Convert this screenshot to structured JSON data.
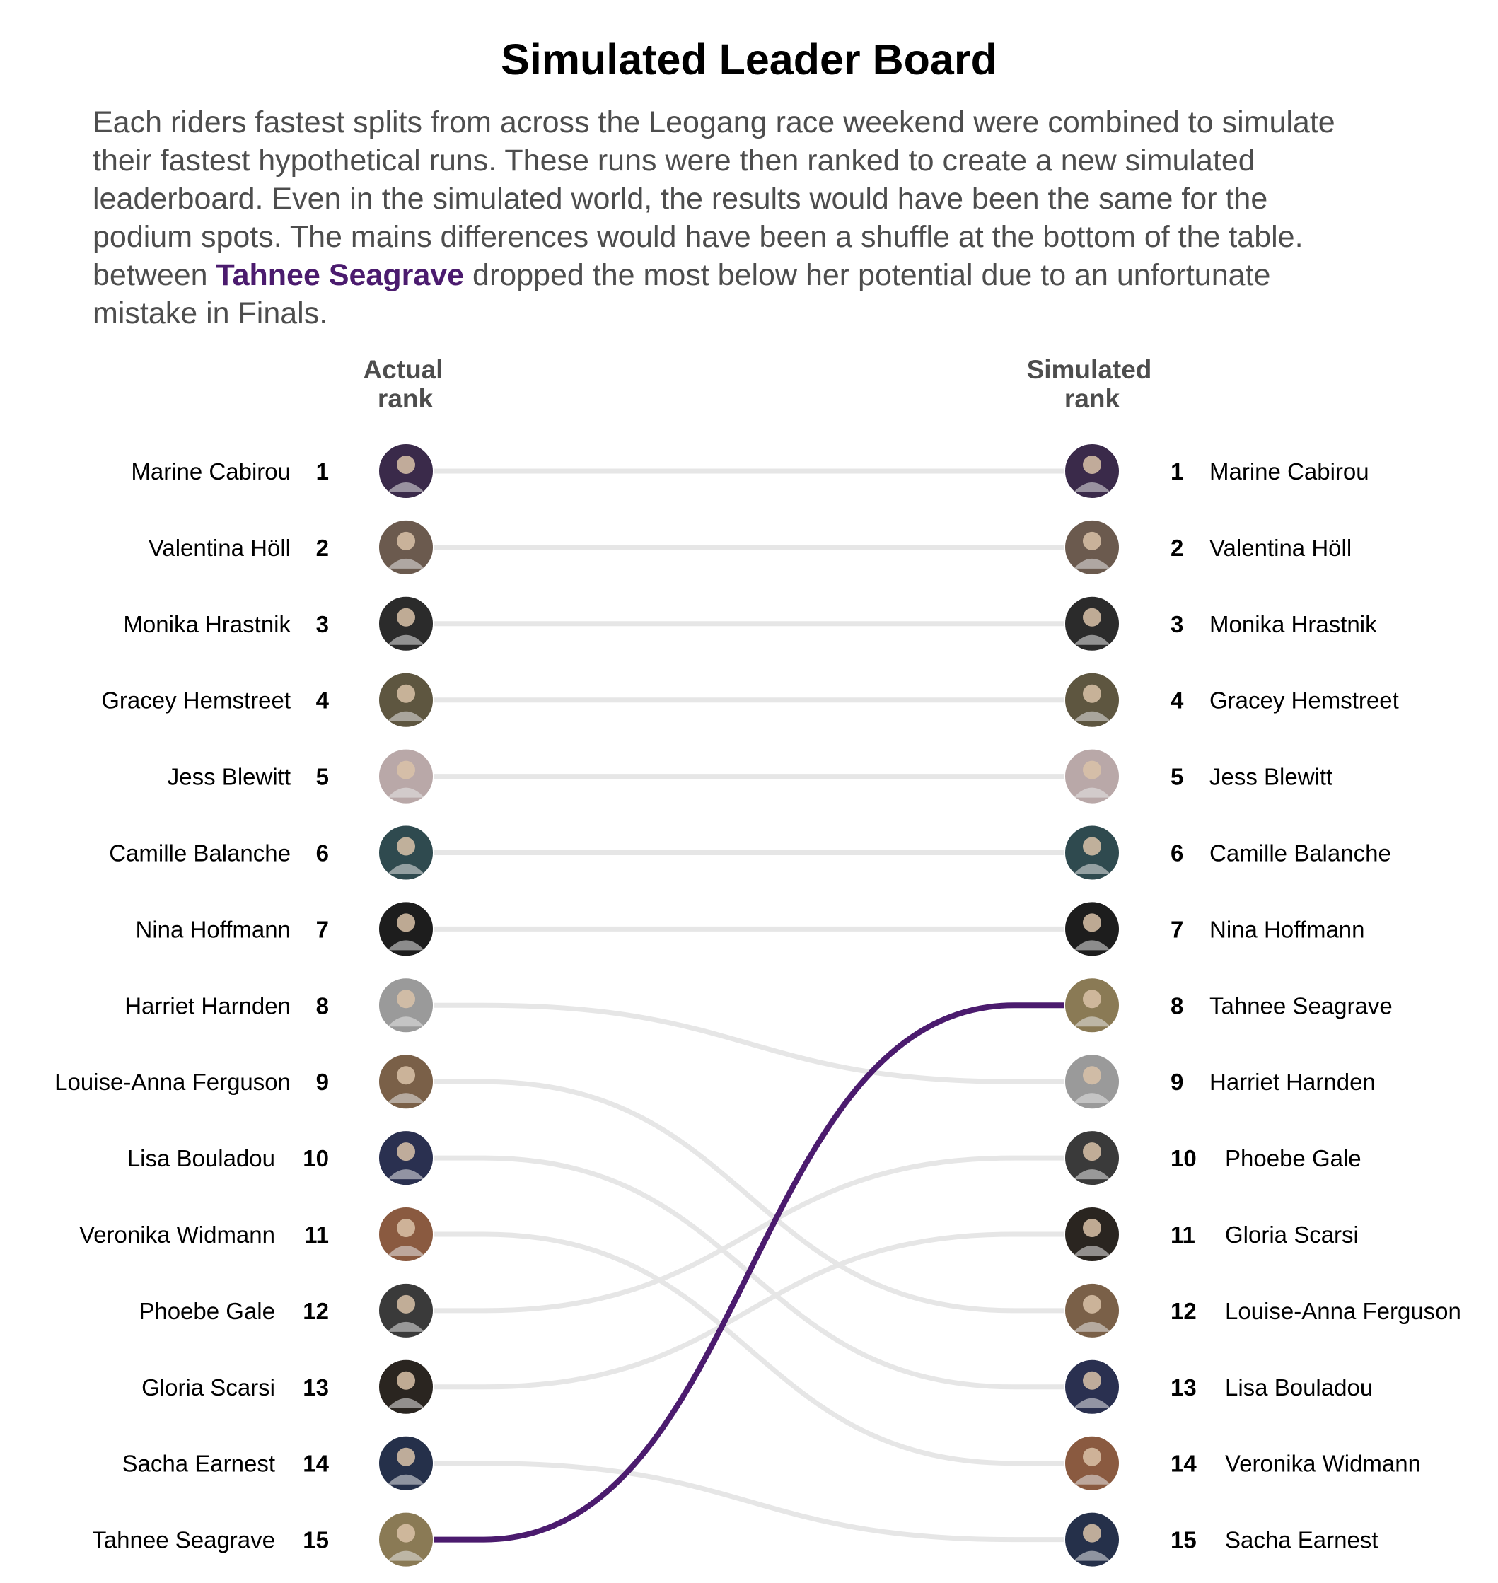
{
  "title": "Simulated Leader Board",
  "description": {
    "lines": [
      "Each riders fastest splits from across the Leogang race weekend were combined to simulate",
      "their fastest hypothetical runs. These runs were then ranked to create a new simulated",
      "leaderboard. Even in the simulated world, the results would have been the same for the",
      "podium spots. The mains differences would have been a shuffle at the bottom of the table."
    ],
    "line5_before": "between ",
    "line5_highlight": "Tahnee Seagrave",
    "line5_after": " dropped the most below her potential due to an unfortunate",
    "line6": "mistake in Finals."
  },
  "colors": {
    "highlight": "#4b1b6e",
    "connector": "#e6e6e6",
    "text": "#000000",
    "muted_text": "#4d4d4d"
  },
  "icons": [
    "rider-avatar-icon"
  ],
  "chart_data": {
    "type": "slope",
    "left_axis_label": [
      "Actual",
      "rank"
    ],
    "right_axis_label": [
      "Simulated",
      "rank"
    ],
    "highlight": "Tahnee Seagrave",
    "riders": [
      {
        "name": "Marine Cabirou",
        "actual_rank": 1,
        "simulated_rank": 1
      },
      {
        "name": "Valentina Höll",
        "actual_rank": 2,
        "simulated_rank": 2
      },
      {
        "name": "Monika Hrastnik",
        "actual_rank": 3,
        "simulated_rank": 3
      },
      {
        "name": "Gracey Hemstreet",
        "actual_rank": 4,
        "simulated_rank": 4
      },
      {
        "name": "Jess Blewitt",
        "actual_rank": 5,
        "simulated_rank": 5
      },
      {
        "name": "Camille Balanche",
        "actual_rank": 6,
        "simulated_rank": 6
      },
      {
        "name": "Nina Hoffmann",
        "actual_rank": 7,
        "simulated_rank": 7
      },
      {
        "name": "Harriet Harnden",
        "actual_rank": 8,
        "simulated_rank": 9
      },
      {
        "name": "Louise-Anna Ferguson",
        "actual_rank": 9,
        "simulated_rank": 12
      },
      {
        "name": "Lisa Bouladou",
        "actual_rank": 10,
        "simulated_rank": 13
      },
      {
        "name": "Veronika Widmann",
        "actual_rank": 11,
        "simulated_rank": 14
      },
      {
        "name": "Phoebe Gale",
        "actual_rank": 12,
        "simulated_rank": 10
      },
      {
        "name": "Gloria Scarsi",
        "actual_rank": 13,
        "simulated_rank": 11
      },
      {
        "name": "Sacha Earnest",
        "actual_rank": 14,
        "simulated_rank": 15
      },
      {
        "name": "Tahnee Seagrave",
        "actual_rank": 15,
        "simulated_rank": 8
      }
    ]
  }
}
